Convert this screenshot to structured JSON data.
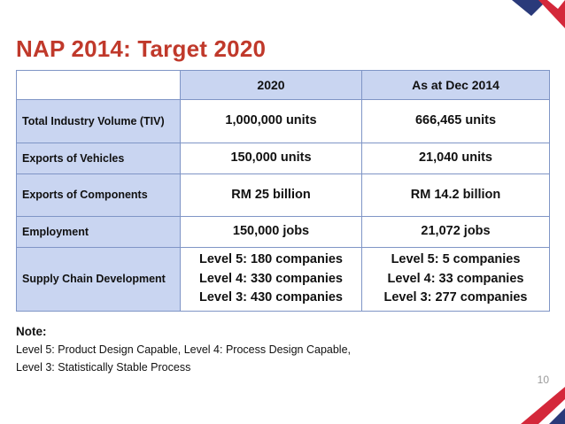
{
  "title": "NAP 2014: Target 2020",
  "table": {
    "columns": [
      "",
      "2020",
      "As at Dec 2014"
    ],
    "rows": [
      {
        "label": "Total Industry Volume (TIV)",
        "target": [
          "1,000,000 units"
        ],
        "actual": [
          "666,465 units"
        ]
      },
      {
        "label": "Exports of Vehicles",
        "target": [
          "150,000 units"
        ],
        "actual": [
          "21,040 units"
        ]
      },
      {
        "label": "Exports of Components",
        "target": [
          "RM 25 billion"
        ],
        "actual": [
          "RM 14.2 billion"
        ]
      },
      {
        "label": "Employment",
        "target": [
          "150,000 jobs"
        ],
        "actual": [
          "21,072 jobs"
        ]
      },
      {
        "label": "Supply Chain Development",
        "target": [
          "Level 5: 180 companies",
          "Level 4: 330 companies",
          "Level 3: 430 companies"
        ],
        "actual": [
          "Level 5: 5 companies",
          "Level 4: 33 companies",
          "Level 3: 277 companies"
        ]
      }
    ]
  },
  "note": {
    "heading": "Note:",
    "line1": "Level 5: Product Design Capable, Level 4: Process Design Capable,",
    "line2": "Level 3: Statistically Stable Process"
  },
  "page_number": "10",
  "colors": {
    "accent_red": "#c0392b",
    "header_blue": "#c9d5f1",
    "logo_navy": "#2a3a7a"
  }
}
